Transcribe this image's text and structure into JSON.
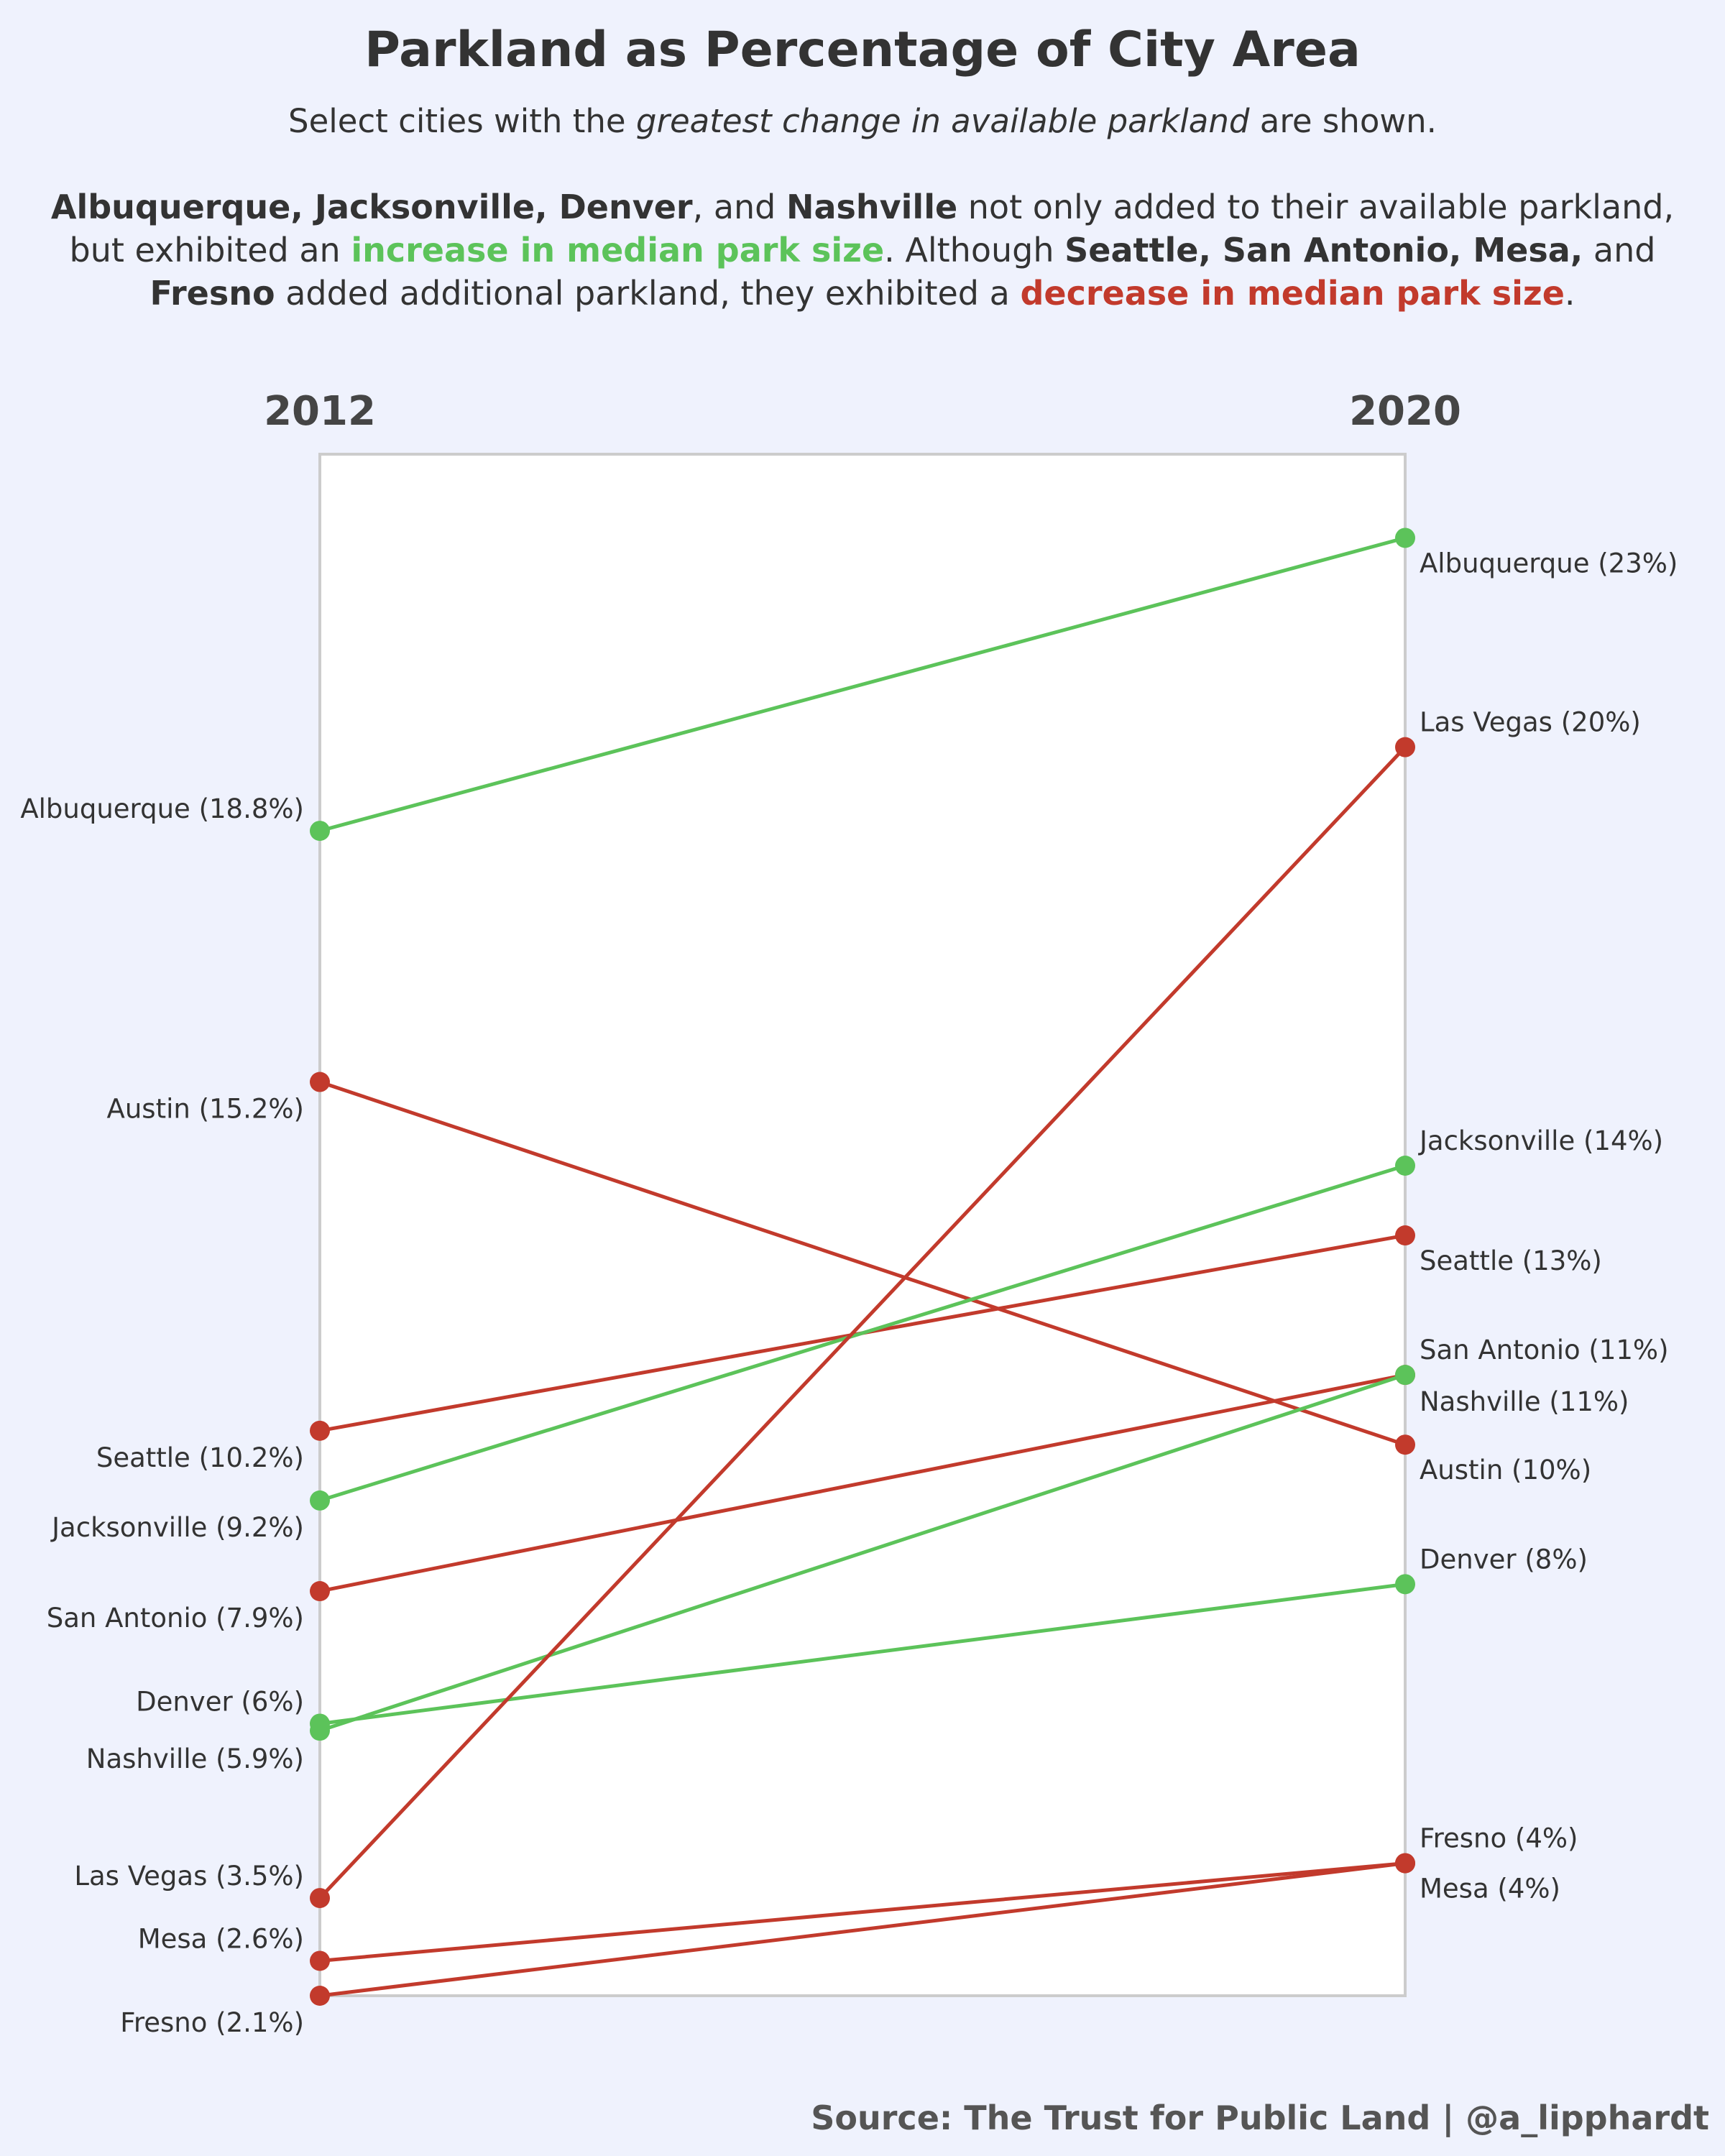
{
  "title": "Parkland as Percentage of City Area",
  "subtitle": {
    "prefix": "Select cities with the ",
    "emphasis": "greatest change in available parkland",
    "suffix": " are shown."
  },
  "description": {
    "increase_cities": "Albuquerque, Jacksonville, Denver",
    "and_1": ", and ",
    "nashville": "Nashville",
    "text_1": " not only added to their available parkland, but exhibited an ",
    "increase_label": "increase in median park size",
    "text_2": ". Although ",
    "decrease_cities": "Seattle, San Antonio, Mesa,",
    "and_2": " and ",
    "fresno": "Fresno",
    "text_3": " added additional parkland, they exhibited a ",
    "decrease_label": "decrease in median park size",
    "text_4": "."
  },
  "source": "Source: The Trust for Public Land | @a_lipphardt",
  "colors": {
    "increase": "#5cc35a",
    "decrease": "#c23a2c",
    "background": "#eff2fd",
    "plot_background": "#ffffff"
  },
  "chart_data": {
    "type": "line",
    "x": [
      "2012",
      "2020"
    ],
    "series": [
      {
        "name": "Albuquerque",
        "values": [
          18.8,
          23
        ],
        "labels": [
          "Albuquerque (18.8%)",
          "Albuquerque (23%)"
        ],
        "trend": "increase"
      },
      {
        "name": "Austin",
        "values": [
          15.2,
          10
        ],
        "labels": [
          "Austin (15.2%)",
          "Austin (10%)"
        ],
        "trend": "decrease"
      },
      {
        "name": "Seattle",
        "values": [
          10.2,
          13
        ],
        "labels": [
          "Seattle (10.2%)",
          "Seattle (13%)"
        ],
        "trend": "decrease"
      },
      {
        "name": "Jacksonville",
        "values": [
          9.2,
          14
        ],
        "labels": [
          "Jacksonville (9.2%)",
          "Jacksonville (14%)"
        ],
        "trend": "increase"
      },
      {
        "name": "San Antonio",
        "values": [
          7.9,
          11
        ],
        "labels": [
          "San Antonio (7.9%)",
          "San Antonio (11%)"
        ],
        "trend": "decrease"
      },
      {
        "name": "Denver",
        "values": [
          6,
          8
        ],
        "labels": [
          "Denver (6%)",
          "Denver (8%)"
        ],
        "trend": "increase"
      },
      {
        "name": "Nashville",
        "values": [
          5.9,
          11
        ],
        "labels": [
          "Nashville (5.9%)",
          "Nashville (11%)"
        ],
        "trend": "increase"
      },
      {
        "name": "Las Vegas",
        "values": [
          3.5,
          20
        ],
        "labels": [
          "Las Vegas (3.5%)",
          "Las Vegas (20%)"
        ],
        "trend": "decrease"
      },
      {
        "name": "Mesa",
        "values": [
          2.6,
          4
        ],
        "labels": [
          "Mesa (2.6%)",
          "Mesa (4%)"
        ],
        "trend": "decrease"
      },
      {
        "name": "Fresno",
        "values": [
          2.1,
          4
        ],
        "labels": [
          "Fresno (2.1%)",
          "Fresno (4%)"
        ],
        "trend": "decrease"
      }
    ],
    "ylim": [
      2.1,
      24.2
    ],
    "grid": false,
    "legend": "none"
  }
}
